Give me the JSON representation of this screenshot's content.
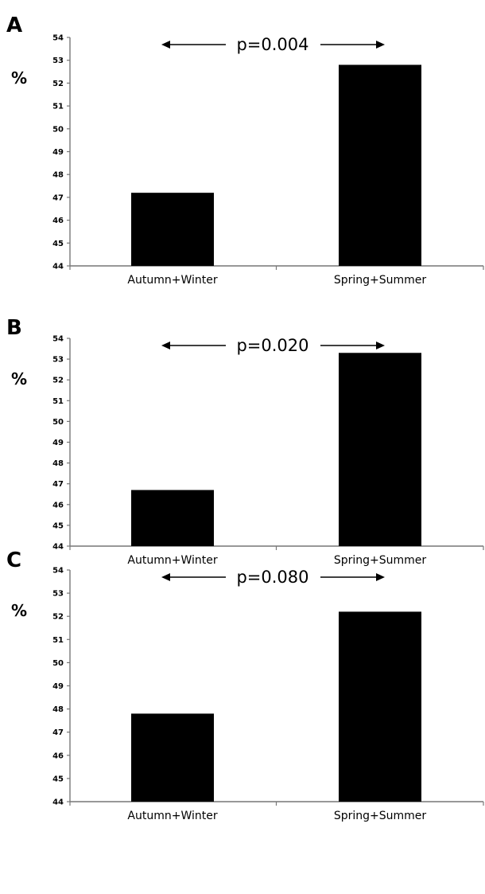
{
  "chart_data": [
    {
      "type": "bar",
      "panel": "A",
      "ylabel": "%",
      "ylim": [
        44,
        54
      ],
      "yticks": [
        44,
        45,
        46,
        47,
        48,
        49,
        50,
        51,
        52,
        53,
        54
      ],
      "categories": [
        "Autumn+Winter",
        "Spring+Summer"
      ],
      "values": [
        47.2,
        52.8
      ],
      "annotation": "p=0.004",
      "bar_color": "#000000"
    },
    {
      "type": "bar",
      "panel": "B",
      "ylabel": "%",
      "ylim": [
        44,
        54
      ],
      "yticks": [
        44,
        45,
        46,
        47,
        48,
        49,
        50,
        51,
        52,
        53,
        54
      ],
      "categories": [
        "Autumn+Winter",
        "Spring+Summer"
      ],
      "values": [
        46.7,
        53.3
      ],
      "annotation": "p=0.020",
      "bar_color": "#000000"
    },
    {
      "type": "bar",
      "panel": "C",
      "ylabel": "%",
      "ylim": [
        44,
        54
      ],
      "yticks": [
        44,
        45,
        46,
        47,
        48,
        49,
        50,
        51,
        52,
        53,
        54
      ],
      "categories": [
        "Autumn+Winter",
        "Spring+Summer"
      ],
      "values": [
        47.8,
        52.2
      ],
      "annotation": "p=0.080",
      "bar_color": "#000000"
    }
  ]
}
